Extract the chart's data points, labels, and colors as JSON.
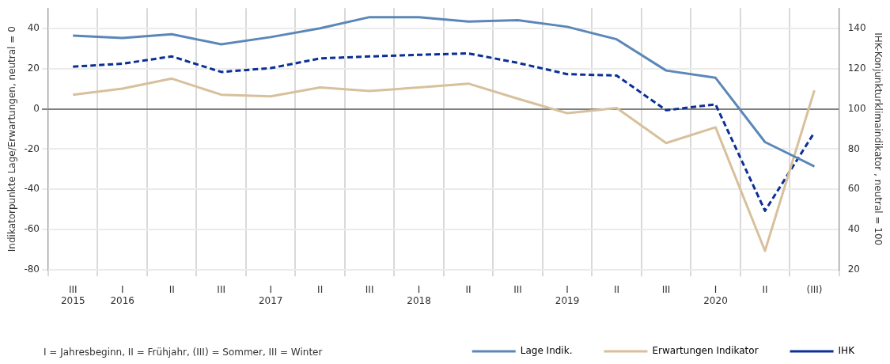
{
  "chart_data": {
    "type": "line",
    "ylabel": "Indikatorpunkte Lage/Erwartungen, neutral = 0",
    "y2label": "IHK-Konjunkturklimaindikator , neutral = 100",
    "categories": [
      "III\n2015",
      "I\n2016",
      "II",
      "III",
      "I\n2017",
      "II",
      "III",
      "I\n2018",
      "II",
      "III",
      "I\n2019",
      "II",
      "III",
      "I\n2020",
      "II",
      "(III)"
    ],
    "series": [
      {
        "name": "Lage Indik.",
        "color": "#5b87b8",
        "values": [
          36.3,
          35.2,
          37,
          32,
          35.6,
          40,
          45.5,
          45.5,
          43.3,
          44,
          40.7,
          34.5,
          19,
          15.4,
          -16.5,
          -28.6
        ]
      },
      {
        "name": "Erwartungen Indikator",
        "color": "#d8c09c",
        "values": [
          7,
          10,
          15,
          7,
          6.2,
          10.6,
          8.8,
          10.6,
          12.5,
          5,
          -2.2,
          0.4,
          -17,
          -9.2,
          -70.5,
          9.2
        ]
      },
      {
        "name": "IHK",
        "color": "#0a2f96",
        "axis": "y2",
        "line_style": "dashed",
        "values": [
          120.9,
          122.4,
          126,
          118.3,
          120.2,
          125,
          126,
          126.8,
          127.5,
          122.8,
          117.2,
          116.5,
          99.3,
          102.2,
          49.4,
          88.3
        ]
      }
    ],
    "ylim": [
      -80,
      50
    ],
    "yticks": [
      -80,
      -60,
      -40,
      -20,
      0,
      20,
      40
    ],
    "y2lim": [
      20,
      150
    ],
    "y2ticks": [
      20,
      40,
      60,
      80,
      100,
      120,
      140
    ],
    "grid": true,
    "legend": "bottom right",
    "marker": "none",
    "line_style": "solid",
    "annotations": [
      "I = Jahresbeginn, II = Frühjahr, (III) = Sommer, III = Winter"
    ]
  }
}
